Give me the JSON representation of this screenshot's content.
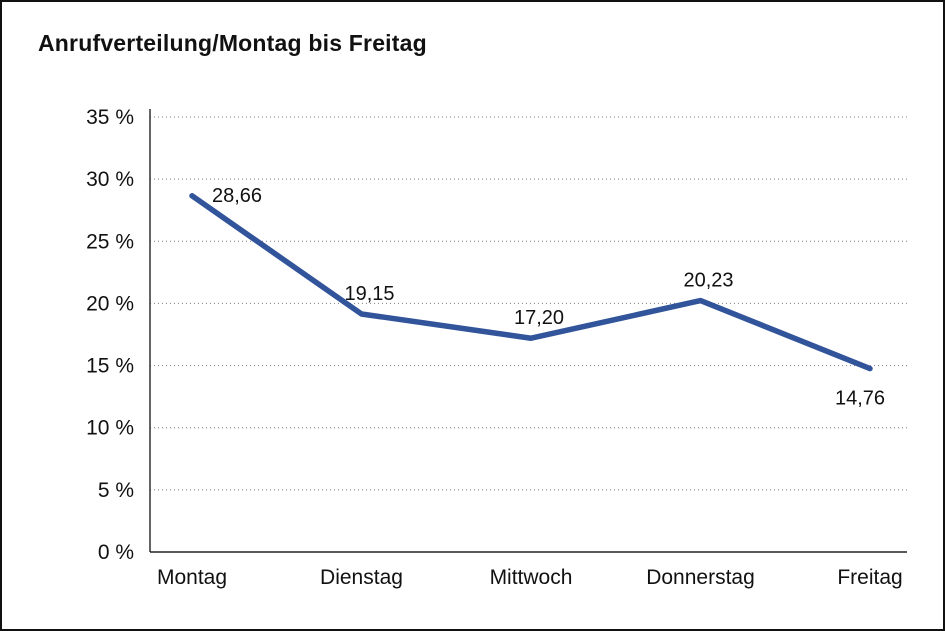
{
  "window": {
    "background_color": "#ffffff",
    "border_color": "#111111"
  },
  "chart_data": {
    "type": "line",
    "title": "Anrufverteilung/Montag bis Freitag",
    "categories": [
      "Montag",
      "Dienstag",
      "Mittwoch",
      "Donnerstag",
      "Freitag"
    ],
    "series": [
      {
        "name": "Anrufverteilung",
        "values": [
          28.66,
          19.15,
          17.2,
          20.23,
          14.76
        ]
      }
    ],
    "data_labels": [
      "28,66",
      "19,15",
      "17,20",
      "20,23",
      "14,76"
    ],
    "label_positions": [
      "right",
      "above",
      "above",
      "above",
      "below"
    ],
    "xlabel": "",
    "ylabel": "",
    "ylim": [
      0,
      35
    ],
    "ytick_step": 5,
    "ytick_labels": [
      "0 %",
      "5 %",
      "10 %",
      "15 %",
      "20 %",
      "25 %",
      "30 %",
      "35 %"
    ],
    "grid": "dotted-horizontal",
    "legend": "none",
    "line_color": "#32549b",
    "grid_color": "#7f7f7f",
    "text_color": "#111111"
  }
}
